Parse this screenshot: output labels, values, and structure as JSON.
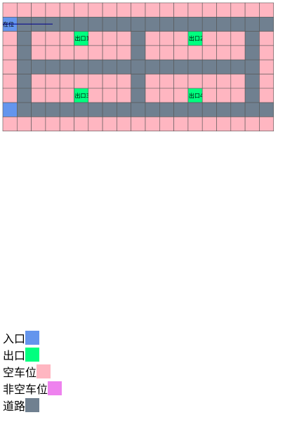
{
  "grid": {
    "car_label": "在位",
    "exits": [
      "出口1",
      "出口2",
      "出口3",
      "出口4"
    ]
  },
  "legend": [
    {
      "label": "入口",
      "color": "#6495ed"
    },
    {
      "label": "出口",
      "color": "#00ff7f"
    },
    {
      "label": "空车位",
      "color": "#ffb6c1"
    },
    {
      "label": "非空车位",
      "color": "#ee82ee"
    },
    {
      "label": "道路",
      "color": "#708090"
    }
  ]
}
